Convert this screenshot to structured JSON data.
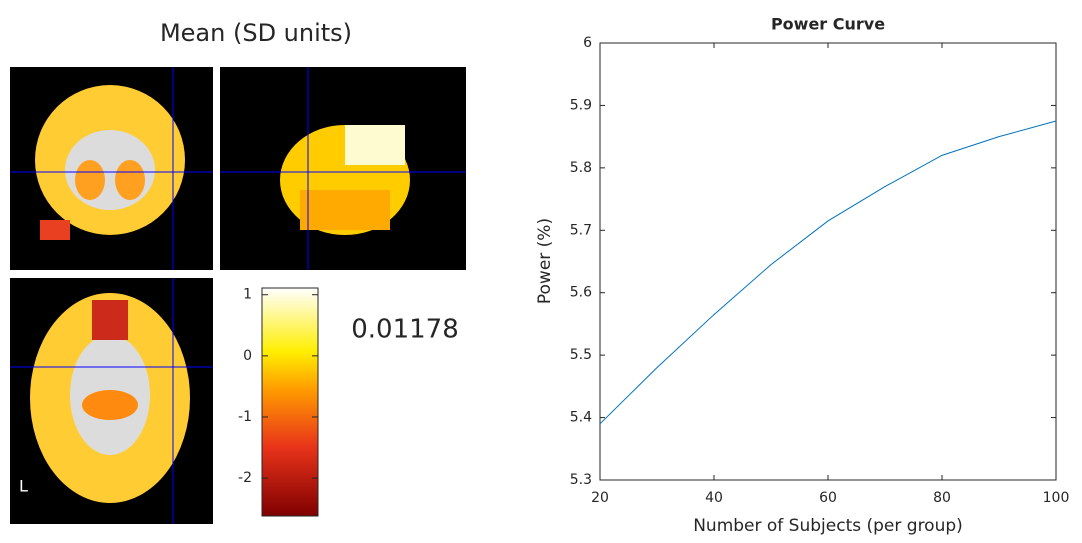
{
  "map_panel": {
    "title": "Mean  (SD units)",
    "value": "0.01178",
    "orientation_label": "L",
    "colorbar": {
      "lim": [
        -2.62,
        1.11
      ],
      "ticks": [
        1,
        0,
        -1,
        -2
      ]
    }
  },
  "chart_data": {
    "type": "line",
    "title": "Power Curve",
    "x_label": "Number of Subjects (per group)",
    "y_label": "Power (%)",
    "x": [
      20,
      30,
      40,
      50,
      60,
      70,
      80,
      90,
      100
    ],
    "series": [
      {
        "color": "#0072bd",
        "values": [
          5.39,
          5.48,
          5.565,
          5.645,
          5.715,
          5.77,
          5.82,
          5.85,
          5.875
        ]
      }
    ],
    "xlim": [
      20,
      100
    ],
    "xticks": [
      20,
      40,
      60,
      80,
      100
    ],
    "ylim": [
      5.3,
      6
    ],
    "yticks": [
      5.3,
      5.4,
      5.5,
      5.6,
      5.7,
      5.8,
      5.9,
      6
    ]
  }
}
